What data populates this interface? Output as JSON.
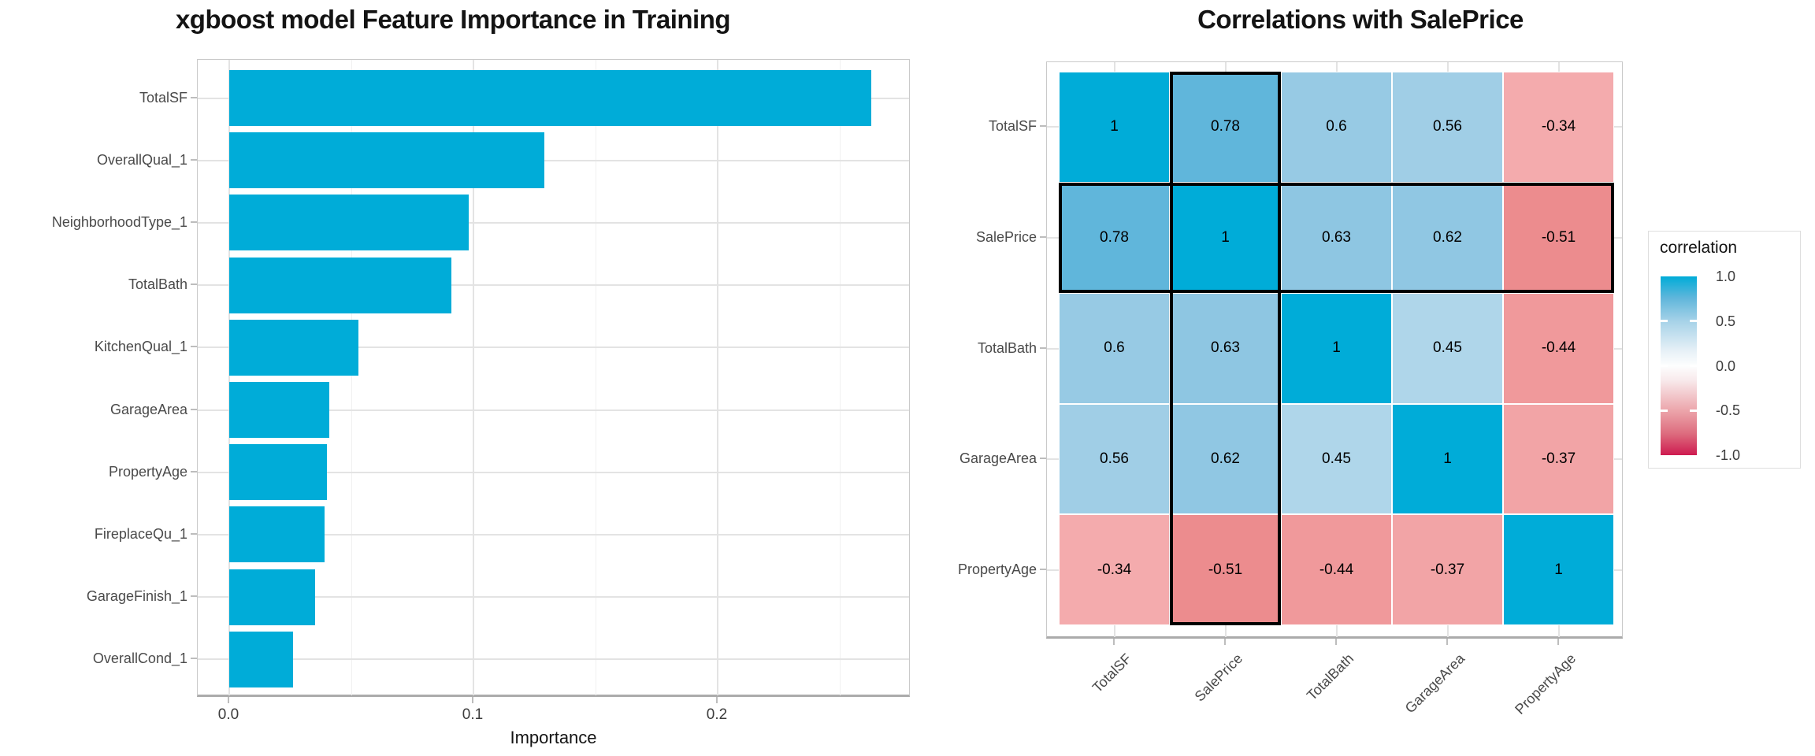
{
  "colors": {
    "bar_fill": "#00ACD8",
    "grid_major": "#E3E3E3",
    "grid_minor": "#F0F0F0",
    "panel_border": "#CACACA",
    "axis_line": "#ABABAB",
    "highlight_outline": "#000000",
    "positive_end": "#00ACD8",
    "negative_end": "#CE1A50",
    "midpoint": "#FFFFFF"
  },
  "chart_data": [
    {
      "type": "bar",
      "orientation": "horizontal",
      "title": "xgboost model Feature Importance in Training",
      "xlabel": "Importance",
      "ylabel": "",
      "categories": [
        "TotalSF",
        "OverallQual_1",
        "NeighborhoodType_1",
        "TotalBath",
        "KitchenQual_1",
        "GarageArea",
        "PropertyAge",
        "FireplaceQu_1",
        "GarageFinish_1",
        "OverallCond_1"
      ],
      "values": [
        0.263,
        0.129,
        0.098,
        0.091,
        0.053,
        0.041,
        0.04,
        0.039,
        0.035,
        0.026
      ],
      "x_ticks": [
        "0.0",
        "0.1",
        "0.2"
      ],
      "x_tick_values": [
        0.0,
        0.1,
        0.2
      ],
      "x_minor_tick_values": [
        0.05,
        0.15,
        0.25
      ],
      "xlim": [
        -0.013,
        0.279
      ],
      "bar_color": "#00ACD8",
      "grid": true,
      "legend_position": "none"
    },
    {
      "type": "heatmap",
      "title": "Correlations with SalePrice",
      "categories": [
        "TotalSF",
        "SalePrice",
        "TotalBath",
        "GarageArea",
        "PropertyAge"
      ],
      "values": [
        [
          1,
          0.78,
          0.6,
          0.56,
          -0.34
        ],
        [
          0.78,
          1,
          0.63,
          0.62,
          -0.51
        ],
        [
          0.6,
          0.63,
          1,
          0.45,
          -0.44
        ],
        [
          0.56,
          0.62,
          0.45,
          1,
          -0.37
        ],
        [
          -0.34,
          -0.51,
          -0.44,
          -0.37,
          1
        ]
      ],
      "labels": [
        [
          "1",
          "0.78",
          "0.6",
          "0.56",
          "-0.34"
        ],
        [
          "0.78",
          "1",
          "0.63",
          "0.62",
          "-0.51"
        ],
        [
          "0.6",
          "0.63",
          "1",
          "0.45",
          "-0.44"
        ],
        [
          "0.56",
          "0.62",
          "0.45",
          "1",
          "-0.37"
        ],
        [
          "-0.34",
          "-0.51",
          "-0.44",
          "-0.37",
          "1"
        ]
      ],
      "value_colors": {
        "1": "#00ACD8",
        "0.78": "#60B6DB",
        "0.63": "#8EC6E2",
        "0.62": "#90C7E3",
        "0.6": "#97CAE4",
        "0.56": "#A0CEE6",
        "0.45": "#AFD6EA",
        "-0.34": "#F4ABAD",
        "-0.37": "#F2A4A6",
        "-0.44": "#F0999B",
        "-0.51": "#EC8C8E"
      },
      "highlighted_category": "SalePrice",
      "highlight_note": "SalePrice row and SalePrice column outlined in black",
      "legend": {
        "title": "correlation",
        "ticks": [
          "1.0",
          "0.5",
          "0.0",
          "-0.5",
          "-1.0"
        ],
        "tick_values": [
          1.0,
          0.5,
          0.0,
          -0.5,
          -1.0
        ],
        "limits": [
          -1.0,
          1.0
        ],
        "position": "right"
      }
    }
  ]
}
